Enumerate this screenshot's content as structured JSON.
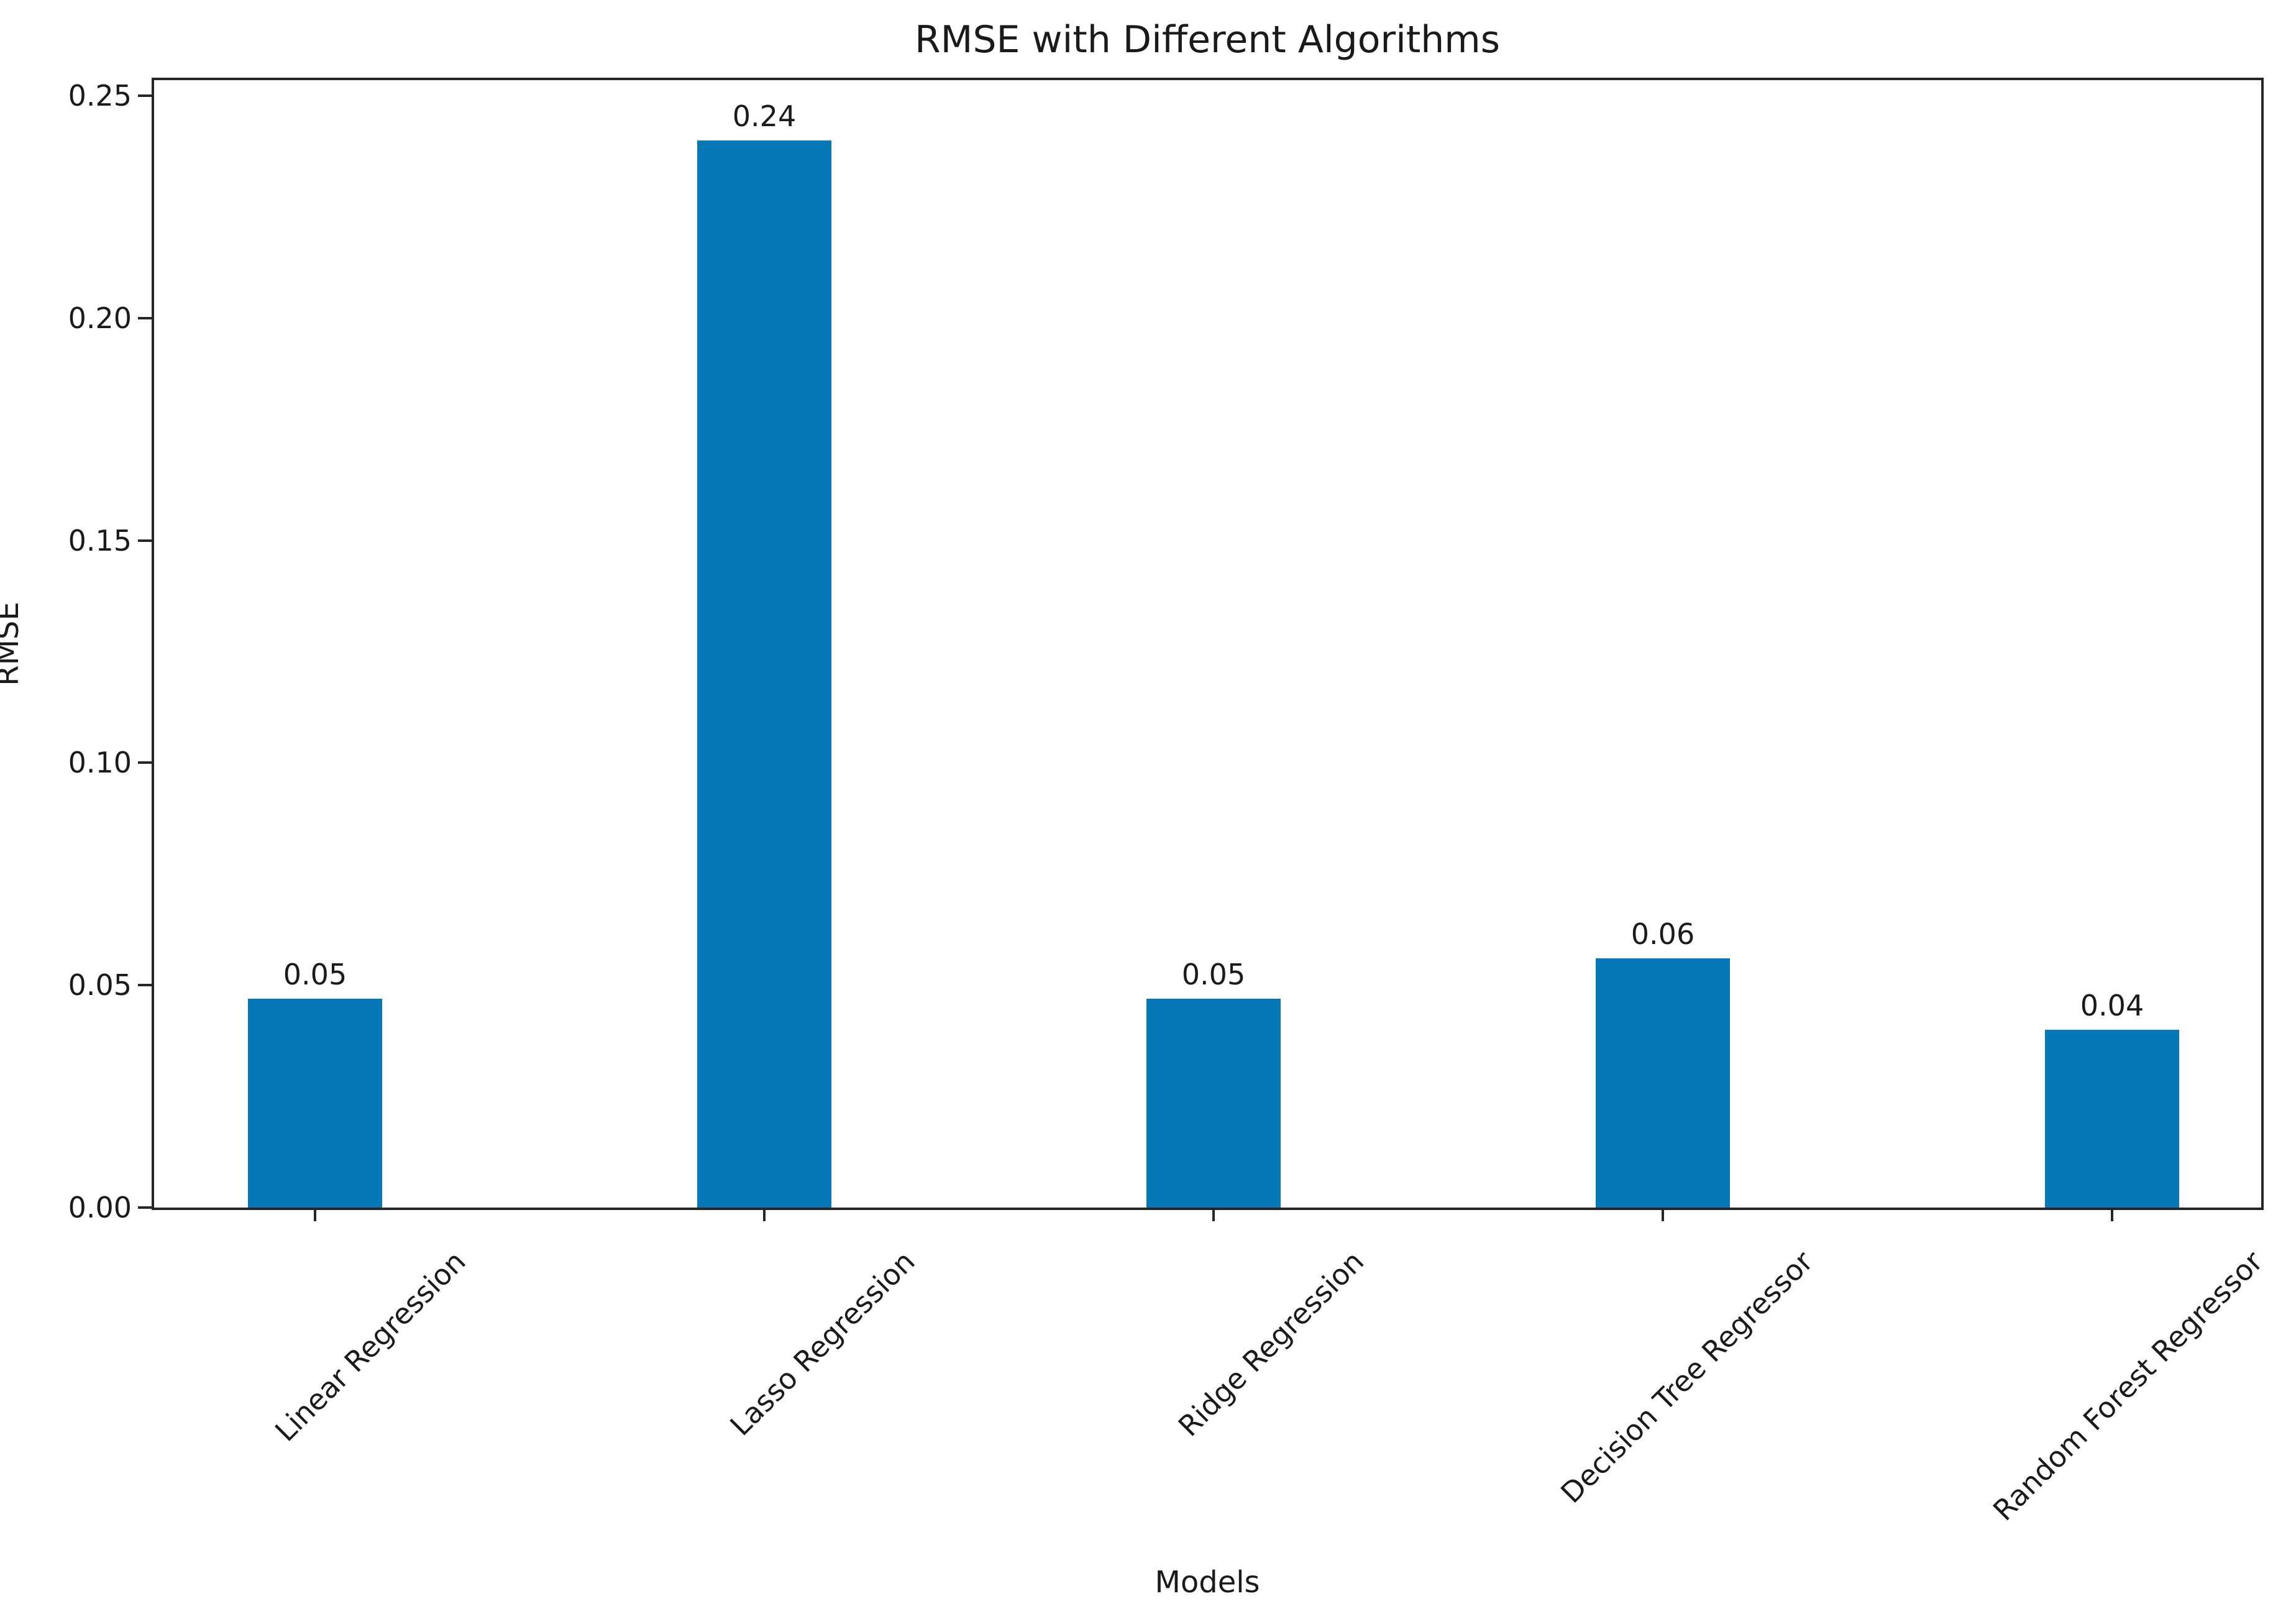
{
  "chart_data": {
    "type": "bar",
    "title": "RMSE with Different Algorithms",
    "xlabel": "Models",
    "ylabel": "RMSE",
    "categories": [
      "Linear Regression",
      "Lasso Regression",
      "Ridge Regression",
      "Decision Tree Regressor",
      "Random Forest Regressor"
    ],
    "values": [
      0.047,
      0.24,
      0.047,
      0.056,
      0.04
    ],
    "bar_labels": [
      "0.05",
      "0.24",
      "0.05",
      "0.06",
      "0.04"
    ],
    "yticks": [
      0.0,
      0.05,
      0.1,
      0.15,
      0.2,
      0.25
    ],
    "ytick_labels": [
      "0.00",
      "0.05",
      "0.10",
      "0.15",
      "0.20",
      "0.25"
    ],
    "ylim": [
      0,
      0.2535
    ],
    "bar_color": "#0778b7",
    "axis_color": "#262626",
    "text_color": "#1a1a1a",
    "grid": false,
    "legend": null
  }
}
